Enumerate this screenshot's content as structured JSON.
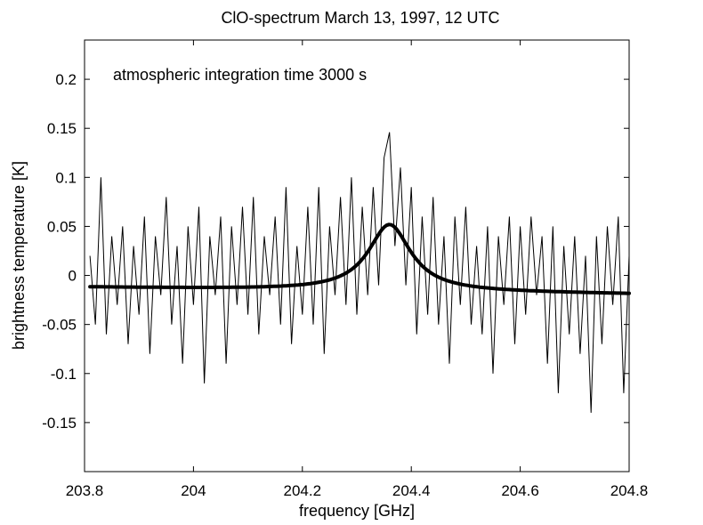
{
  "chart_data": {
    "type": "line",
    "title": "ClO-spectrum March 13, 1997, 12 UTC",
    "xlabel": "frequency [GHz]",
    "ylabel": "brightness temperature [K]",
    "annotation": "atmospheric integration time 3000 s",
    "xlim": [
      203.8,
      204.8
    ],
    "ylim": [
      -0.2,
      0.24
    ],
    "xticks": [
      203.8,
      204.0,
      204.2,
      204.4,
      204.6,
      204.8
    ],
    "xtick_labels": [
      "203.8",
      "204",
      "204.2",
      "204.4",
      "204.6",
      "204.8"
    ],
    "yticks": [
      0.2,
      0.15,
      0.1,
      0.05,
      0,
      -0.05,
      -0.1,
      -0.15
    ],
    "ytick_labels": [
      "0.2",
      "0.15",
      "0.1",
      "0.05",
      "0",
      "-0.05",
      "-0.1",
      "-0.15"
    ],
    "grid": false,
    "colors": {
      "spectrum": "#000000",
      "fit": "#000000",
      "background": "#ffffff"
    },
    "series": [
      {
        "kind": "measured spectrum",
        "x": [
          203.81,
          203.82,
          203.83,
          203.84,
          203.85,
          203.86,
          203.87,
          203.88,
          203.89,
          203.9,
          203.91,
          203.92,
          203.93,
          203.94,
          203.95,
          203.96,
          203.97,
          203.98,
          203.99,
          204.0,
          204.01,
          204.02,
          204.03,
          204.04,
          204.05,
          204.06,
          204.07,
          204.08,
          204.09,
          204.1,
          204.11,
          204.12,
          204.13,
          204.14,
          204.15,
          204.16,
          204.17,
          204.18,
          204.19,
          204.2,
          204.21,
          204.22,
          204.23,
          204.24,
          204.25,
          204.26,
          204.27,
          204.28,
          204.29,
          204.3,
          204.31,
          204.32,
          204.33,
          204.34,
          204.35,
          204.36,
          204.37,
          204.38,
          204.39,
          204.4,
          204.41,
          204.42,
          204.43,
          204.44,
          204.45,
          204.46,
          204.47,
          204.48,
          204.49,
          204.5,
          204.51,
          204.52,
          204.53,
          204.54,
          204.55,
          204.56,
          204.57,
          204.58,
          204.59,
          204.6,
          204.61,
          204.62,
          204.63,
          204.64,
          204.65,
          204.66,
          204.67,
          204.68,
          204.69,
          204.7,
          204.71,
          204.72,
          204.73,
          204.74,
          204.75,
          204.76,
          204.77,
          204.78,
          204.79,
          204.8
        ],
        "y": [
          0.02,
          -0.05,
          0.1,
          -0.06,
          0.04,
          -0.03,
          0.05,
          -0.07,
          0.03,
          -0.04,
          0.06,
          -0.08,
          0.04,
          -0.02,
          0.08,
          -0.05,
          0.03,
          -0.09,
          0.05,
          -0.03,
          0.07,
          -0.11,
          0.04,
          -0.02,
          0.06,
          -0.09,
          0.05,
          -0.03,
          0.07,
          -0.04,
          0.08,
          -0.06,
          0.04,
          -0.02,
          0.06,
          -0.05,
          0.09,
          -0.07,
          0.03,
          -0.04,
          0.07,
          -0.05,
          0.09,
          -0.08,
          0.05,
          -0.02,
          0.08,
          -0.03,
          0.1,
          -0.04,
          0.07,
          -0.02,
          0.09,
          -0.01,
          0.12,
          0.146,
          0.03,
          0.11,
          -0.01,
          0.09,
          -0.06,
          0.06,
          -0.04,
          0.08,
          -0.05,
          0.04,
          -0.09,
          0.06,
          -0.03,
          0.07,
          -0.05,
          0.03,
          -0.06,
          0.05,
          -0.1,
          0.04,
          -0.03,
          0.06,
          -0.07,
          0.05,
          -0.04,
          0.06,
          -0.02,
          0.04,
          -0.09,
          0.05,
          -0.12,
          0.03,
          -0.06,
          0.04,
          -0.08,
          0.02,
          -0.14,
          0.04,
          -0.07,
          0.05,
          -0.03,
          0.06,
          -0.12,
          0.02
        ]
      },
      {
        "kind": "fitted line",
        "center": 204.36,
        "peak": 0.052,
        "width": 0.095,
        "baseline_start": -0.012,
        "baseline_end": -0.019,
        "x_range": [
          203.81,
          204.8
        ]
      }
    ]
  }
}
